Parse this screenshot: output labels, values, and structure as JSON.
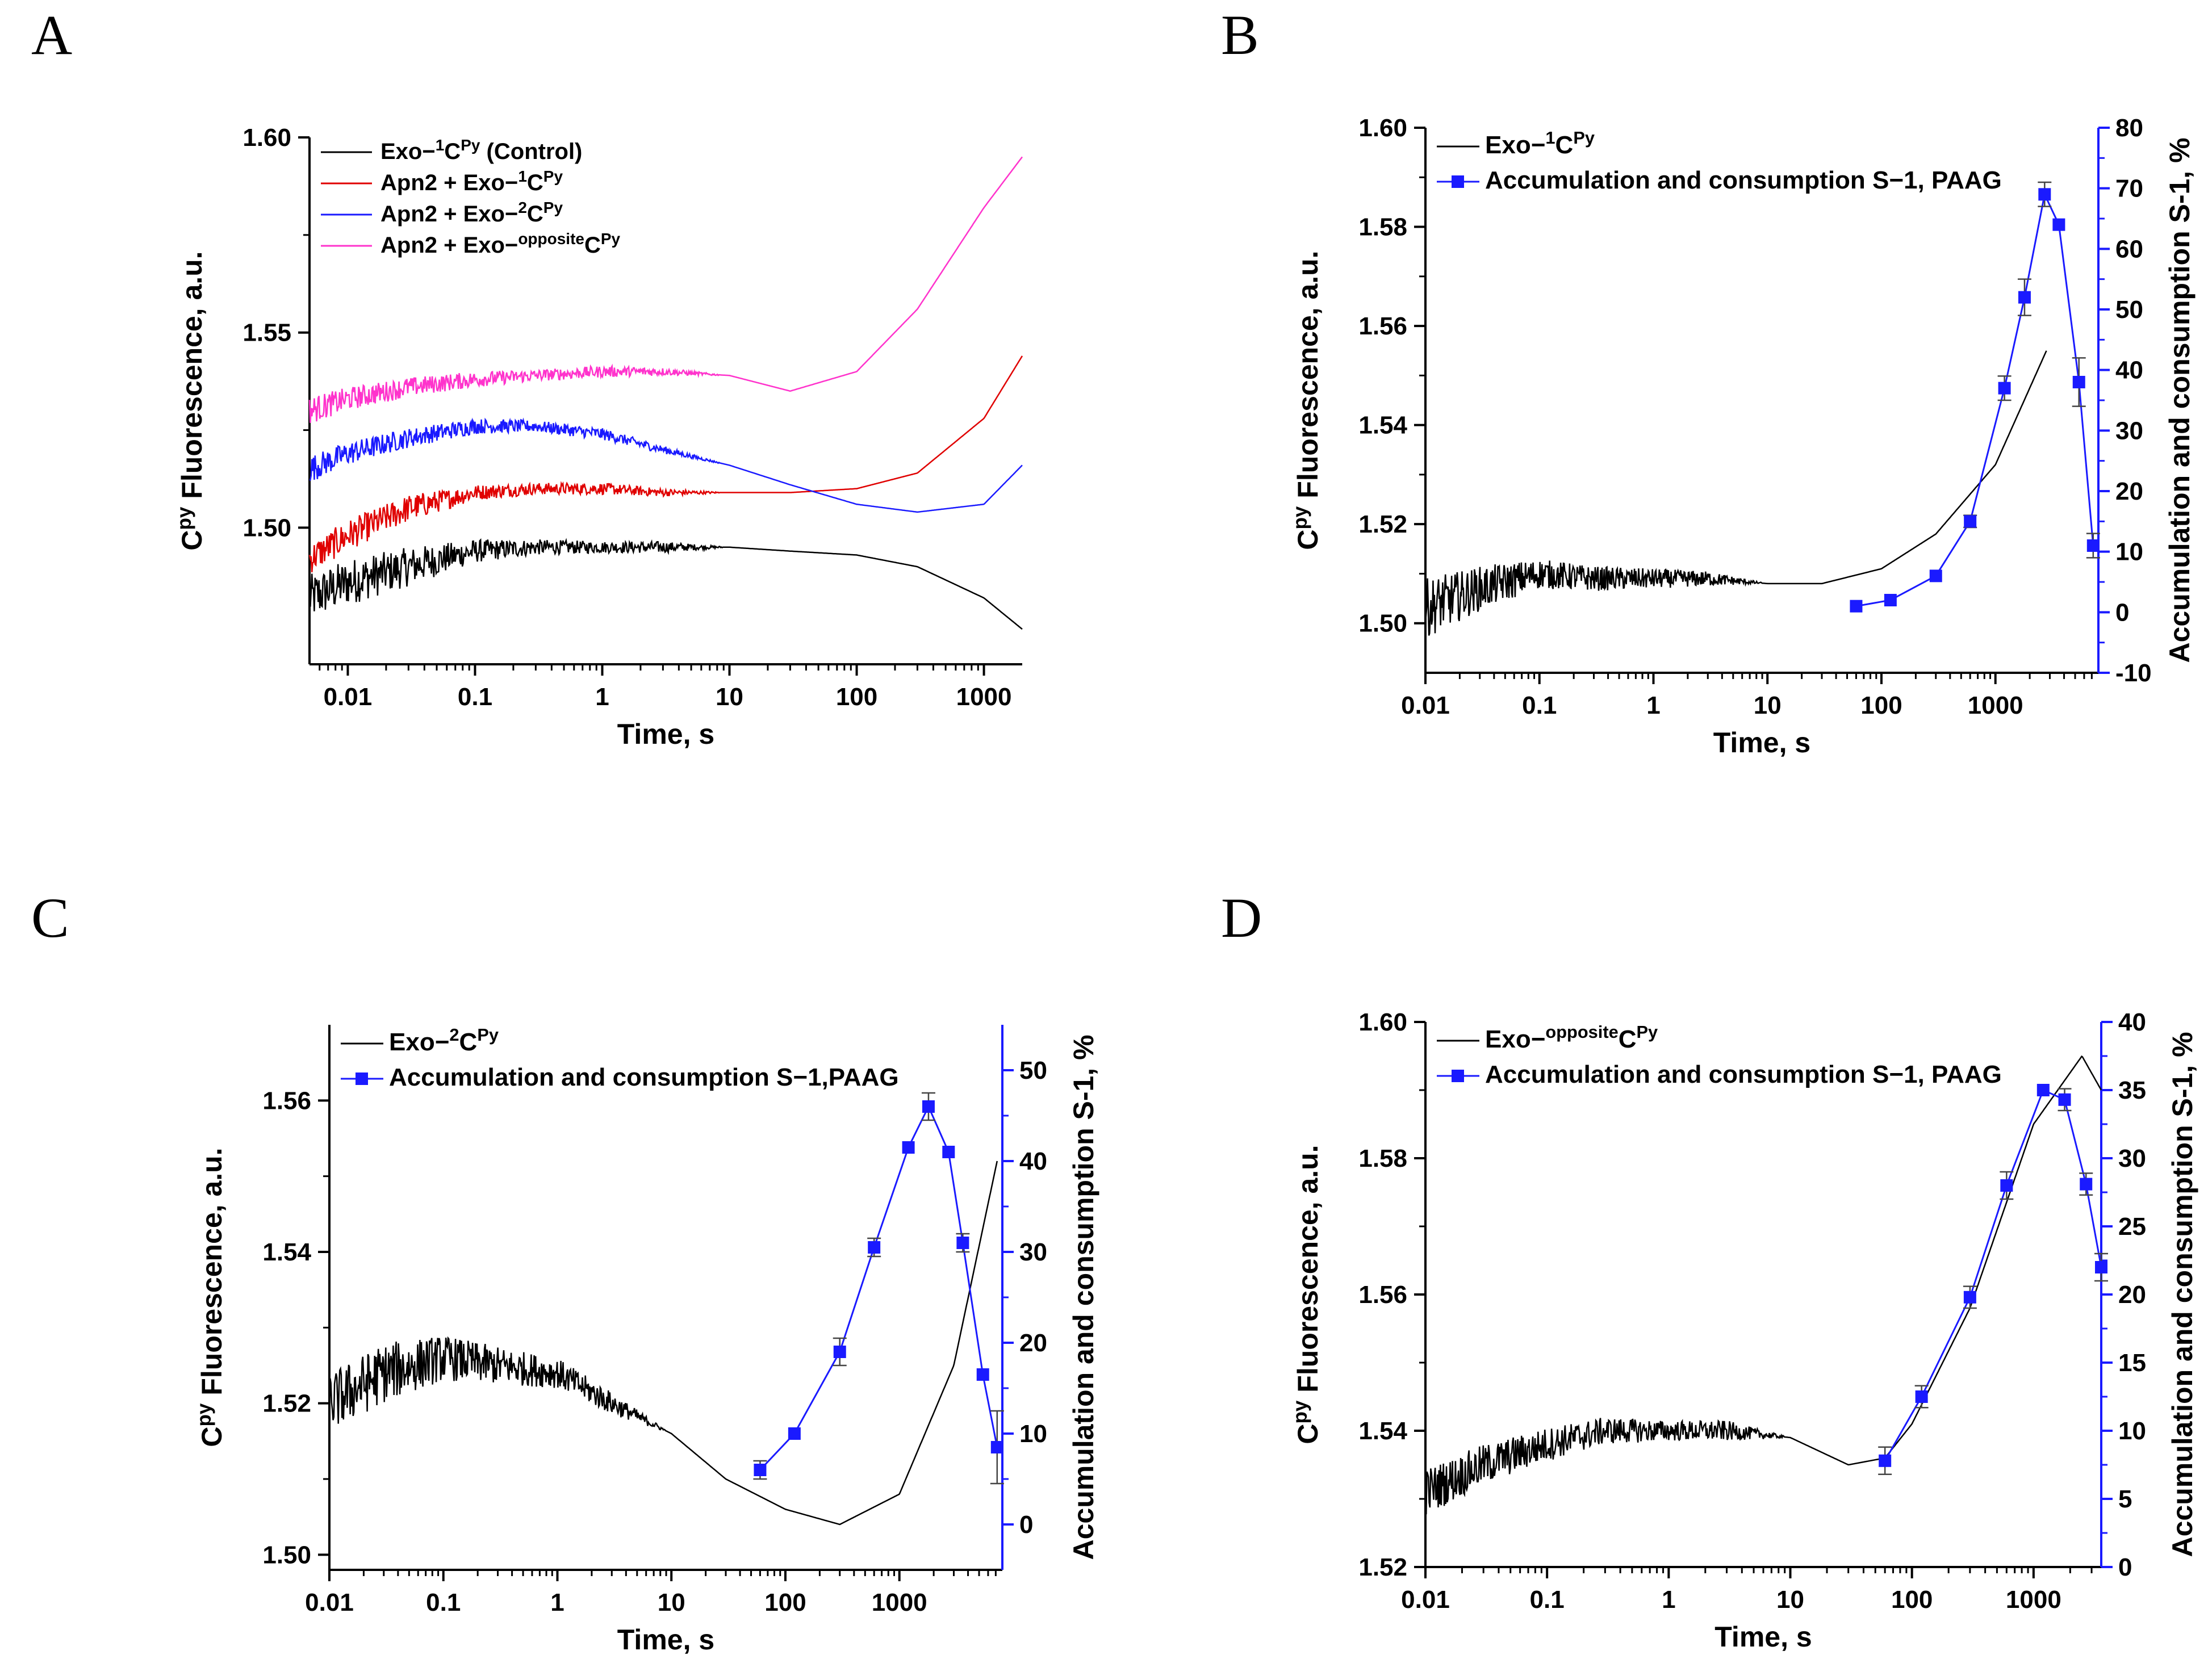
{
  "colors": {
    "black": "#000000",
    "red": "#e00000",
    "blue": "#1a1aff",
    "magenta": "#ff33cc",
    "markerBlue": "#1a1aff"
  },
  "chart_data": [
    {
      "panel": "A",
      "type": "line",
      "xscale": "log",
      "xlim": [
        0.005,
        2000
      ],
      "ylim": [
        1.465,
        1.6
      ],
      "xticks": [
        0.01,
        0.1,
        1,
        10,
        100,
        1000
      ],
      "xtick_labels": [
        "0.01",
        "0.1",
        "1",
        "10",
        "100",
        "1000"
      ],
      "yticks": [
        1.5,
        1.55,
        1.6
      ],
      "ytick_labels": [
        "1.50",
        "1.55",
        "1.60"
      ],
      "xlabel": "Time, s",
      "ylabel_main": "C",
      "ylabel_sup": "py",
      "ylabel_rest": " Fluorescence, a.u.",
      "legend_position": "top-left",
      "series": [
        {
          "name": "Exo-1CPy (Control)",
          "legend": {
            "pre": "Exo−",
            "sup1": "1",
            "mid": "C",
            "sup2": "Py",
            "post": " (Control)"
          },
          "color": "black",
          "x": [
            0.005,
            0.01,
            0.03,
            0.1,
            0.3,
            1,
            3,
            10,
            30,
            100,
            300,
            1000,
            2000
          ],
          "y": [
            1.482,
            1.486,
            1.49,
            1.494,
            1.495,
            1.495,
            1.495,
            1.495,
            1.494,
            1.493,
            1.49,
            1.482,
            1.474
          ],
          "noise": [
            0.012,
            0.012,
            0.01,
            0.006,
            0.004,
            0.003,
            0.003,
            0.0,
            0.0,
            0.0,
            0.0,
            0.0,
            0.0
          ]
        },
        {
          "name": "Apn2 + Exo-1CPy",
          "legend": {
            "pre": "Apn2 + Exo−",
            "sup1": "1",
            "mid": "C",
            "sup2": "Py",
            "post": ""
          },
          "color": "red",
          "x": [
            0.005,
            0.01,
            0.03,
            0.1,
            0.3,
            1,
            3,
            10,
            30,
            100,
            300,
            1000,
            2000
          ],
          "y": [
            1.492,
            1.498,
            1.505,
            1.509,
            1.51,
            1.51,
            1.509,
            1.509,
            1.509,
            1.51,
            1.514,
            1.528,
            1.544
          ],
          "noise": [
            0.008,
            0.008,
            0.007,
            0.004,
            0.003,
            0.003,
            0.002,
            0.0,
            0.0,
            0.0,
            0.0,
            0.0,
            0.0
          ]
        },
        {
          "name": "Apn2 + Exo-2CPy",
          "legend": {
            "pre": "Apn2 + Exo−",
            "sup1": "2",
            "mid": "C",
            "sup2": "Py",
            "post": ""
          },
          "color": "blue",
          "x": [
            0.005,
            0.01,
            0.03,
            0.1,
            0.3,
            1,
            3,
            10,
            30,
            100,
            300,
            1000,
            2000
          ],
          "y": [
            1.515,
            1.519,
            1.523,
            1.526,
            1.526,
            1.524,
            1.52,
            1.516,
            1.511,
            1.506,
            1.504,
            1.506,
            1.516
          ],
          "noise": [
            0.007,
            0.006,
            0.005,
            0.004,
            0.003,
            0.003,
            0.002,
            0.0,
            0.0,
            0.0,
            0.0,
            0.0,
            0.0
          ]
        },
        {
          "name": "Apn2 + Exo-oppositeCPy",
          "legend": {
            "pre": "Apn2 + Exo−",
            "sup1": "opposite",
            "mid": "C",
            "sup2": "Py",
            "post": ""
          },
          "color": "magenta",
          "x": [
            0.005,
            0.01,
            0.03,
            0.1,
            0.3,
            1,
            3,
            10,
            30,
            100,
            300,
            1000,
            2000
          ],
          "y": [
            1.53,
            1.533,
            1.536,
            1.538,
            1.539,
            1.54,
            1.54,
            1.539,
            1.535,
            1.54,
            1.556,
            1.582,
            1.595
          ],
          "noise": [
            0.007,
            0.006,
            0.005,
            0.004,
            0.003,
            0.003,
            0.002,
            0.0,
            0.0,
            0.0,
            0.0,
            0.0,
            0.0
          ]
        }
      ]
    },
    {
      "panel": "B",
      "type": "line",
      "xscale": "log",
      "xlim": [
        0.01,
        8000
      ],
      "ylim": [
        1.49,
        1.6
      ],
      "y2lim": [
        -10,
        80
      ],
      "xticks": [
        0.01,
        0.1,
        1,
        10,
        100,
        1000
      ],
      "xtick_labels": [
        "0.01",
        "0.1",
        "1",
        "10",
        "100",
        "1000"
      ],
      "yticks": [
        1.5,
        1.52,
        1.54,
        1.56,
        1.58,
        1.6
      ],
      "ytick_labels": [
        "1.50",
        "1.52",
        "1.54",
        "1.56",
        "1.58",
        "1.60"
      ],
      "y2ticks": [
        -10,
        0,
        10,
        20,
        30,
        40,
        50,
        60,
        70,
        80
      ],
      "y2tick_labels": [
        "-10",
        "0",
        "10",
        "20",
        "30",
        "40",
        "50",
        "60",
        "70",
        "80"
      ],
      "xlabel": "Time, s",
      "ylabel_main": "C",
      "ylabel_sup": "py",
      "ylabel_rest": " Fluorescence, a.u.",
      "y2label": "Accumulation and consumption  S-1, %",
      "legend_position": "top-left",
      "legend": [
        {
          "pre": "Exo−",
          "sup1": "1",
          "mid": "C",
          "sup2": "Py",
          "post": ""
        },
        {
          "pre": "Accumulation and consumption S−1, PAAG",
          "sup1": "",
          "mid": "",
          "sup2": "",
          "post": ""
        }
      ],
      "fluor": {
        "x": [
          0.01,
          0.03,
          0.1,
          0.3,
          1,
          3,
          10,
          30,
          100,
          300,
          1000,
          2800
        ],
        "y": [
          1.503,
          1.507,
          1.51,
          1.509,
          1.509,
          1.509,
          1.508,
          1.508,
          1.511,
          1.518,
          1.532,
          1.555
        ],
        "noise": [
          0.012,
          0.009,
          0.006,
          0.005,
          0.004,
          0.003,
          0.0,
          0.0,
          0.0,
          0.0,
          0.0,
          0.0
        ]
      },
      "s1": {
        "x": [
          60,
          120,
          300,
          600,
          1200,
          1800,
          2700,
          3600,
          5400,
          7200
        ],
        "y": [
          1,
          2,
          6,
          15,
          37,
          52,
          69,
          64,
          38,
          11
        ],
        "err": [
          0,
          0,
          0,
          1,
          2,
          3,
          2,
          0,
          4,
          2
        ]
      }
    },
    {
      "panel": "C",
      "type": "line",
      "xscale": "log",
      "xlim": [
        0.01,
        8000
      ],
      "ylim": [
        1.498,
        1.57
      ],
      "y2lim": [
        -5,
        55
      ],
      "xticks": [
        0.01,
        0.1,
        1,
        10,
        100,
        1000
      ],
      "xtick_labels": [
        "0.01",
        "0.1",
        "1",
        "10",
        "100",
        "1000"
      ],
      "yticks": [
        1.5,
        1.52,
        1.54,
        1.56
      ],
      "ytick_labels": [
        "1.50",
        "1.52",
        "1.54",
        "1.56"
      ],
      "y2ticks": [
        0,
        10,
        20,
        30,
        40,
        50
      ],
      "y2tick_labels": [
        "0",
        "10",
        "20",
        "30",
        "40",
        "50"
      ],
      "xlabel": "Time, s",
      "ylabel_main": "C",
      "ylabel_sup": "py",
      "ylabel_rest": " Fluorescence, a.u.",
      "y2label": "Accumulation and consumption  S-1, %",
      "legend_position": "top-left",
      "legend": [
        {
          "pre": "Exo−",
          "sup1": "2",
          "mid": "C",
          "sup2": "Py",
          "post": ""
        },
        {
          "pre": "Accumulation and consumption  S−1,PAAG",
          "sup1": "",
          "mid": "",
          "sup2": "",
          "post": ""
        }
      ],
      "fluor": {
        "x": [
          0.01,
          0.03,
          0.1,
          0.3,
          1,
          3,
          10,
          30,
          100,
          300,
          1000,
          3000,
          7200
        ],
        "y": [
          1.52,
          1.524,
          1.526,
          1.525,
          1.524,
          1.52,
          1.516,
          1.51,
          1.506,
          1.504,
          1.508,
          1.525,
          1.552
        ],
        "noise": [
          0.008,
          0.008,
          0.006,
          0.005,
          0.004,
          0.003,
          0.0,
          0.0,
          0.0,
          0.0,
          0.0,
          0.0,
          0.0
        ]
      },
      "s1": {
        "x": [
          60,
          120,
          300,
          600,
          1200,
          1800,
          2700,
          3600,
          5400,
          7200
        ],
        "y": [
          6,
          10,
          19,
          30.5,
          41.5,
          46,
          41,
          31,
          16.5,
          8.5
        ],
        "err": [
          1,
          0,
          1.5,
          1,
          0,
          1.5,
          0,
          1,
          0,
          4
        ]
      }
    },
    {
      "panel": "D",
      "type": "line",
      "xscale": "log",
      "xlim": [
        0.01,
        3600
      ],
      "ylim": [
        1.52,
        1.6
      ],
      "y2lim": [
        0,
        40
      ],
      "xticks": [
        0.01,
        0.1,
        1,
        10,
        100,
        1000
      ],
      "xtick_labels": [
        "0.01",
        "0.1",
        "1",
        "10",
        "100",
        "1000"
      ],
      "yticks": [
        1.52,
        1.54,
        1.56,
        1.58,
        1.6
      ],
      "ytick_labels": [
        "1.52",
        "1.54",
        "1.56",
        "1.58",
        "1.60"
      ],
      "y2ticks": [
        0,
        5,
        10,
        15,
        20,
        25,
        30,
        35,
        40
      ],
      "y2tick_labels": [
        "0",
        "5",
        "10",
        "15",
        "20",
        "25",
        "30",
        "35",
        "40"
      ],
      "xlabel": "Time, s",
      "ylabel_main": "C",
      "ylabel_sup": "py",
      "ylabel_rest": " Fluorescence, a.u.",
      "y2label": "Accumulation and consumption  S-1, %",
      "legend_position": "top-left",
      "legend": [
        {
          "pre": "Exo−",
          "sup1": "opposite",
          "mid": "C",
          "sup2": "Py",
          "post": ""
        },
        {
          "pre": "Accumulation and consumption  S−1, PAAG",
          "sup1": "",
          "mid": "",
          "sup2": "",
          "post": ""
        }
      ],
      "fluor": {
        "x": [
          0.01,
          0.03,
          0.1,
          0.3,
          1,
          3,
          10,
          30,
          60,
          100,
          300,
          1000,
          2500,
          3600
        ],
        "y": [
          1.531,
          1.535,
          1.538,
          1.54,
          1.54,
          1.54,
          1.539,
          1.535,
          1.536,
          1.541,
          1.558,
          1.585,
          1.595,
          1.59
        ],
        "noise": [
          0.007,
          0.006,
          0.005,
          0.004,
          0.003,
          0.003,
          0.0,
          0.0,
          0.0,
          0.0,
          0.0,
          0.0,
          0.0,
          0.0
        ]
      },
      "s1": {
        "x": [
          60,
          120,
          300,
          600,
          1200,
          1800,
          2700,
          3600
        ],
        "y": [
          7.8,
          12.5,
          19.8,
          28,
          35,
          34.3,
          28.1,
          22
        ],
        "err": [
          1,
          0.8,
          0.8,
          1,
          0,
          0.8,
          0.8,
          1
        ]
      }
    }
  ],
  "panel_letters": [
    "A",
    "B",
    "C",
    "D"
  ]
}
